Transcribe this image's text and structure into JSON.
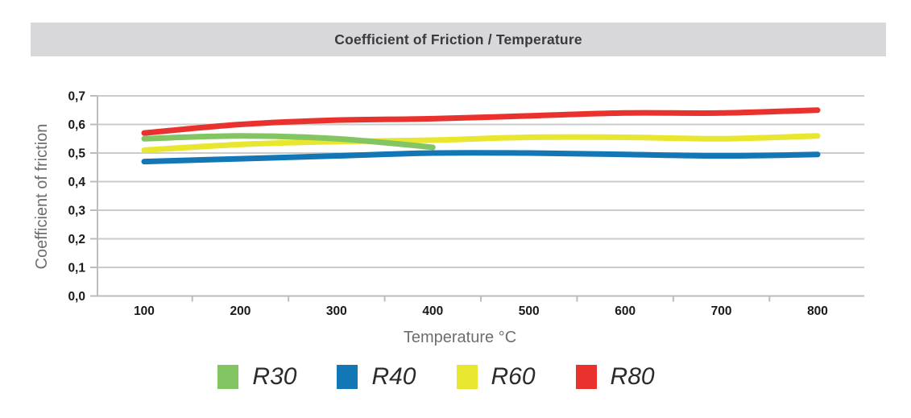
{
  "title": "Coefficient of Friction / Temperature",
  "chart_data": {
    "type": "line",
    "title": "Coefficient of Friction / Temperature",
    "xlabel": "Temperature °C",
    "ylabel": "Coefficient of friction",
    "categories": [
      100,
      200,
      300,
      400,
      500,
      600,
      700,
      800
    ],
    "x_tick_labels": [
      "100",
      "200",
      "300",
      "400",
      "500",
      "600",
      "700",
      "800"
    ],
    "y_ticks": [
      0.0,
      0.1,
      0.2,
      0.3,
      0.4,
      0.5,
      0.6,
      0.7
    ],
    "y_tick_labels": [
      "0,0",
      "0,1",
      "0,2",
      "0,3",
      "0,4",
      "0,5",
      "0,6",
      "0,7"
    ],
    "ylim": [
      0,
      0.7
    ],
    "grid": "horizontal",
    "legend_position": "bottom",
    "series": [
      {
        "name": "R30",
        "color": "#83c563",
        "values": [
          0.55,
          0.56,
          0.55,
          0.52,
          null,
          null,
          null,
          null
        ]
      },
      {
        "name": "R40",
        "color": "#1377b5",
        "values": [
          0.47,
          0.48,
          0.49,
          0.5,
          0.5,
          0.495,
          0.49,
          0.495
        ]
      },
      {
        "name": "R60",
        "color": "#e9e630",
        "values": [
          0.51,
          0.53,
          0.54,
          0.545,
          0.555,
          0.555,
          0.55,
          0.56
        ]
      },
      {
        "name": "R80",
        "color": "#e9322e",
        "values": [
          0.57,
          0.6,
          0.615,
          0.62,
          0.63,
          0.64,
          0.64,
          0.65
        ]
      }
    ],
    "draw_order": [
      "R60",
      "R30",
      "R40",
      "R80"
    ]
  },
  "colors": {
    "title_bar_bg": "#d8d8da",
    "title_text": "#3a3a3c",
    "axis_label_text": "#6e6e6e",
    "tick_label_text": "#1a1a1a",
    "gridline": "#cbcbcb",
    "axis_line": "#bdbdbd",
    "legend_text": "#2b2b2b"
  }
}
